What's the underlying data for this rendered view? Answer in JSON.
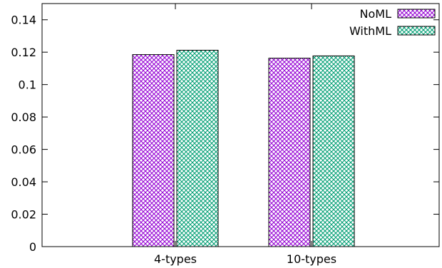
{
  "chart_data": {
    "type": "bar",
    "title": "",
    "xlabel": "",
    "ylabel": "",
    "categories": [
      "4-types",
      "10-types"
    ],
    "series": [
      {
        "name": "NoML",
        "values": [
          0.1185,
          0.1163
        ],
        "color": "#9400d3",
        "pattern": "crosshatch"
      },
      {
        "name": "WithML",
        "values": [
          0.1212,
          0.1177
        ],
        "color": "#009e73",
        "pattern": "crosshatch"
      }
    ],
    "ylim": [
      0,
      0.15
    ],
    "yticks": [
      {
        "value": 0,
        "label": "0"
      },
      {
        "value": 0.02,
        "label": "0.02"
      },
      {
        "value": 0.04,
        "label": "0.04"
      },
      {
        "value": 0.06,
        "label": "0.06"
      },
      {
        "value": 0.08,
        "label": "0.08"
      },
      {
        "value": 0.1,
        "label": "0.1"
      },
      {
        "value": 0.12,
        "label": "0.12"
      },
      {
        "value": 0.14,
        "label": "0.14"
      }
    ],
    "grid": false,
    "legend": "top-right"
  }
}
